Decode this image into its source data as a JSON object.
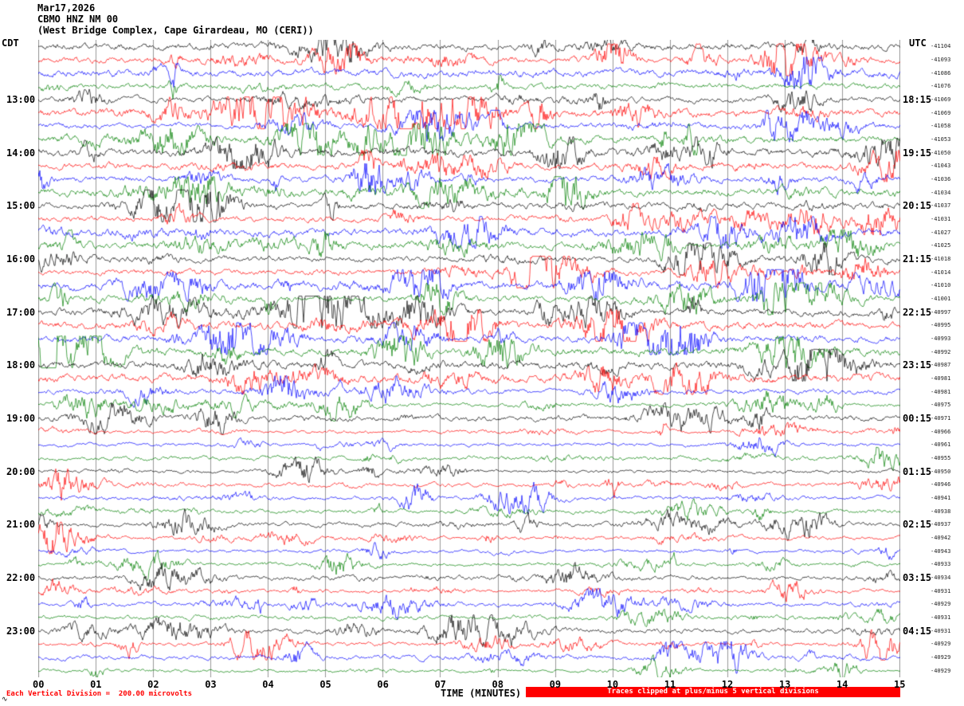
{
  "header": {
    "date": "Mar17,2026",
    "station_line": "CBMO HNZ NM 00",
    "location_line": "(West Bridge Complex, Cape Girardeau, MO (CERI))"
  },
  "axes": {
    "left_timezone": "CDT",
    "right_timezone": "UTC"
  },
  "footer": {
    "division_note": "Each Vertical Division =  200.00 microvolts",
    "clip_note": "Traces clipped at plus/minus 5 vertical divisions",
    "xlabel": "TIME (MINUTES)",
    "corner_mark": "∿"
  },
  "chart_data": {
    "type": "line",
    "subtype": "helicorder seismogram, 15 minutes per trace line",
    "title": "CBMO HNZ NM 00 (West Bridge Complex, Cape Girardeau, MO (CERI)) Mar17,2026",
    "xlabel": "TIME (MINUTES)",
    "x_ticks": [
      "00",
      "01",
      "02",
      "03",
      "04",
      "05",
      "06",
      "07",
      "08",
      "09",
      "10",
      "11",
      "12",
      "13",
      "14",
      "15"
    ],
    "x_range_minutes": [
      0,
      15
    ],
    "grid": "vertical gridline at each minute, full plot height",
    "num_traces": 48,
    "trace_colors_cycle": [
      "#000000",
      "#ff0000",
      "#0000ff",
      "#008000"
    ],
    "clip_divisions": 5,
    "microvolts_per_division": 200.0,
    "left_hour_labels": [
      {
        "row": 4,
        "label": "13:00"
      },
      {
        "row": 8,
        "label": "14:00"
      },
      {
        "row": 12,
        "label": "15:00"
      },
      {
        "row": 16,
        "label": "16:00"
      },
      {
        "row": 20,
        "label": "17:00"
      },
      {
        "row": 24,
        "label": "18:00"
      },
      {
        "row": 28,
        "label": "19:00"
      },
      {
        "row": 32,
        "label": "20:00"
      },
      {
        "row": 36,
        "label": "21:00"
      },
      {
        "row": 40,
        "label": "22:00"
      },
      {
        "row": 44,
        "label": "23:00"
      }
    ],
    "right_utc_labels": [
      {
        "row": 4,
        "label": "18:15"
      },
      {
        "row": 8,
        "label": "19:15"
      },
      {
        "row": 12,
        "label": "20:15"
      },
      {
        "row": 16,
        "label": "21:15"
      },
      {
        "row": 20,
        "label": "22:15"
      },
      {
        "row": 24,
        "label": "23:15"
      },
      {
        "row": 28,
        "label": "00:15"
      },
      {
        "row": 32,
        "label": "01:15"
      },
      {
        "row": 36,
        "label": "02:15"
      },
      {
        "row": 40,
        "label": "03:15"
      },
      {
        "row": 44,
        "label": "04:15"
      }
    ],
    "trace_offset_labels": [
      "-41104",
      "-41093",
      "-41086",
      "-41076",
      "-41069",
      "-41069",
      "-41058",
      "-41053",
      "-41050",
      "-41043",
      "-41036",
      "-41034",
      "-41037",
      "-41031",
      "-41027",
      "-41025",
      "-41018",
      "-41014",
      "-41010",
      "-41001",
      "-40997",
      "-40995",
      "-40993",
      "-40992",
      "-40987",
      "-40981",
      "-40981",
      "-40975",
      "-40971",
      "-40966",
      "-40961",
      "-40955",
      "-40950",
      "-40946",
      "-40941",
      "-40938",
      "-40937",
      "-40942",
      "-40943",
      "-40933",
      "-40934",
      "-40931",
      "-40929",
      "-40931",
      "-40931",
      "-40929",
      "-40929",
      "-40929"
    ]
  }
}
